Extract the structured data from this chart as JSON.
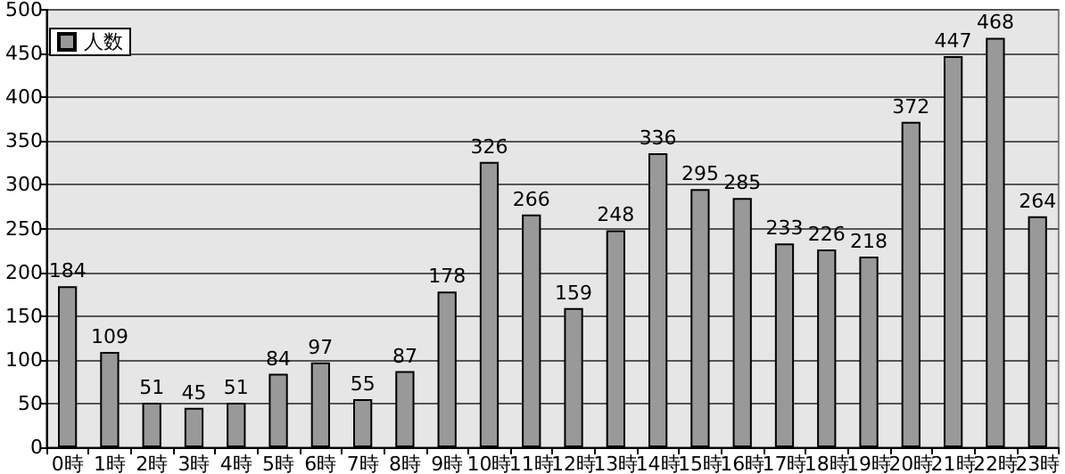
{
  "chart_data": {
    "type": "bar",
    "categories": [
      "0時",
      "1時",
      "2時",
      "3時",
      "4時",
      "5時",
      "6時",
      "7時",
      "8時",
      "9時",
      "10時",
      "11時",
      "12時",
      "13時",
      "14時",
      "15時",
      "16時",
      "17時",
      "18時",
      "19時",
      "20時",
      "21時",
      "22時",
      "23時"
    ],
    "series": [
      {
        "name": "人数",
        "color": "#999999",
        "values": [
          184,
          109,
          51,
          45,
          51,
          84,
          97,
          55,
          87,
          178,
          326,
          266,
          159,
          248,
          336,
          295,
          285,
          233,
          226,
          218,
          372,
          447,
          468,
          264
        ]
      }
    ],
    "ylim": [
      0,
      500
    ],
    "yticks": [
      0,
      50,
      100,
      150,
      200,
      250,
      300,
      350,
      400,
      450,
      500
    ],
    "grid": "y",
    "legend": "top left",
    "data_labels": true
  }
}
